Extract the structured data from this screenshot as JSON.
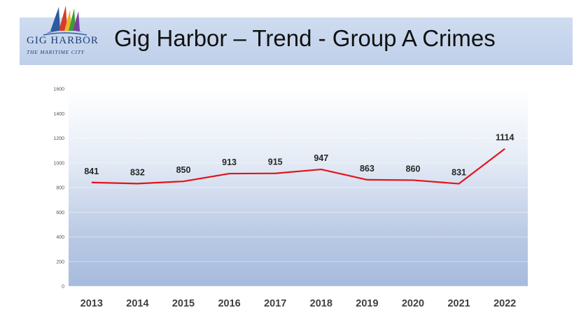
{
  "header": {
    "title": "Gig Harbor – Trend - Group A Crimes",
    "logo_text": "GIG HARBOR",
    "logo_subtext": "THE MARITIME CITY"
  },
  "colors": {
    "line": "#e3141b",
    "header_band": "#c7d6ee"
  },
  "chart_data": {
    "type": "line",
    "title": "",
    "xlabel": "",
    "ylabel": "",
    "categories": [
      "2013",
      "2014",
      "2015",
      "2016",
      "2017",
      "2018",
      "2019",
      "2020",
      "2021",
      "2022"
    ],
    "series": [
      {
        "values": [
          841,
          832,
          850,
          913,
          915,
          947,
          863,
          860,
          831,
          1114
        ]
      }
    ],
    "ylim": [
      0,
      1600
    ],
    "yticks": [
      0,
      200,
      400,
      600,
      800,
      1000,
      1200,
      1400,
      1600
    ],
    "grid": true,
    "data_labels": true,
    "legend": "none"
  }
}
